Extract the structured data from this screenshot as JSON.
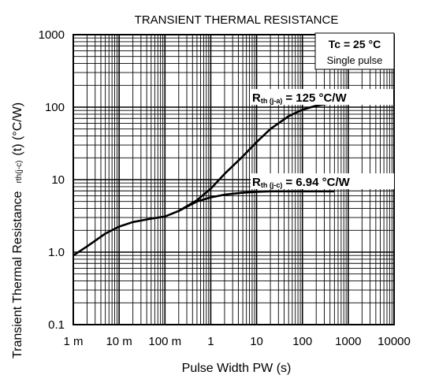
{
  "chart_data": {
    "type": "line",
    "title": "TRANSIENT THERMAL RESISTANCE",
    "xlabel": "Pulse Width  PW   (s)",
    "ylabel_main": "Transient Thermal Resistance",
    "ylabel_sym": "rth(j-c)",
    "ylabel_unit": "(t)   (°C/W)",
    "x_scale": "log",
    "y_scale": "log",
    "xlim": [
      0.001,
      10000
    ],
    "ylim": [
      0.1,
      1000
    ],
    "grid": true,
    "x_ticks": [
      {
        "value": 0.001,
        "label": "1 m"
      },
      {
        "value": 0.01,
        "label": "10 m"
      },
      {
        "value": 0.1,
        "label": "100 m"
      },
      {
        "value": 1,
        "label": "1"
      },
      {
        "value": 10,
        "label": "10"
      },
      {
        "value": 100,
        "label": "100"
      },
      {
        "value": 1000,
        "label": "1000"
      },
      {
        "value": 10000,
        "label": "10000"
      }
    ],
    "y_ticks": [
      {
        "value": 1000,
        "label": "1000"
      },
      {
        "value": 100,
        "label": "100"
      },
      {
        "value": 10,
        "label": "10"
      },
      {
        "value": 1,
        "label": "1.0"
      },
      {
        "value": 0.1,
        "label": "0.1"
      }
    ],
    "conditions": [
      "Tc = 25 °C",
      "Single pulse"
    ],
    "series": [
      {
        "x": [
          0.001,
          0.002,
          0.005,
          0.01,
          0.02,
          0.05,
          0.1,
          0.2,
          0.5,
          1,
          2,
          5,
          10,
          20,
          50,
          100,
          200,
          500
        ],
        "y": [
          0.9,
          1.2,
          1.8,
          2.25,
          2.6,
          2.9,
          3.1,
          3.7,
          5.2,
          7.5,
          12,
          21,
          33,
          50,
          75,
          92,
          105,
          115
        ]
      },
      {
        "x": [
          0.2,
          0.5,
          1,
          2,
          5,
          10,
          20,
          50,
          100,
          200,
          500
        ],
        "y": [
          3.7,
          5.0,
          5.7,
          6.2,
          6.6,
          6.8,
          6.9,
          6.9,
          6.9,
          6.9,
          6.9
        ]
      }
    ],
    "annotations": [
      {
        "symbol": "R",
        "sub": "th (j-a)",
        "text": "= 125 °C/W"
      },
      {
        "symbol": "R",
        "sub": "th (j-c)",
        "text": "= 6.94 °C/W"
      }
    ]
  }
}
